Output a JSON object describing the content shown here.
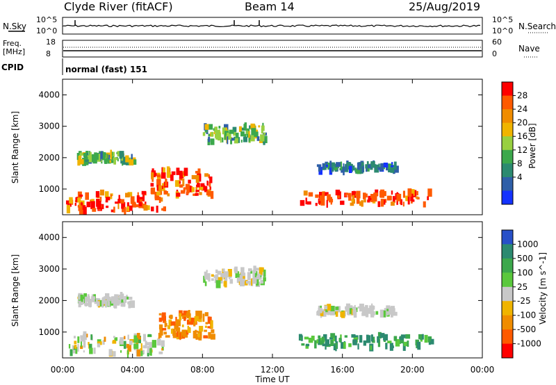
{
  "header": {
    "station": "Clyde River (fitACF)",
    "beam": "Beam 14",
    "date": "25/Aug/2019"
  },
  "status_panels": {
    "nsky_label": "N.Sky",
    "nsky_ticks": [
      "10^5",
      "10^0"
    ],
    "nsearch_label": "N.Search",
    "nsearch_ticks": [
      "10^5",
      "10^0"
    ],
    "freq_label": "Freq.",
    "freq_unit": "[MHz]",
    "freq_ticks": [
      "18",
      "8"
    ],
    "nave_label": "Nave",
    "nave_ticks": [
      "60",
      "0"
    ],
    "cpid_label": "CPID",
    "cpid_value": "normal (fast) 151"
  },
  "chart_data": [
    {
      "type": "heatmap",
      "panel": "power",
      "ylabel": "Slant Range [km]",
      "yticks": [
        "4000",
        "3000",
        "2000",
        "1000"
      ],
      "ylim": [
        180,
        4500
      ],
      "xlim": [
        0,
        24
      ],
      "colorbar": {
        "label": "Power [dB]",
        "ticks": [
          "28",
          "24",
          "20",
          "16",
          "12",
          "8",
          "4"
        ],
        "colors": [
          "#ff0000",
          "#ff5a00",
          "#f08c00",
          "#f0b400",
          "#98d040",
          "#3ca84c",
          "#2c8a70",
          "#2f5fa8",
          "#1432ff"
        ]
      },
      "regions": [
        {
          "t0": 0.2,
          "t1": 5.8,
          "r0": 300,
          "r1": 900,
          "level": "high"
        },
        {
          "t0": 5.0,
          "t1": 8.5,
          "r0": 800,
          "r1": 1600,
          "level": "high"
        },
        {
          "t0": 0.8,
          "t1": 4.0,
          "r0": 1850,
          "r1": 2150,
          "level": "mid"
        },
        {
          "t0": 8.0,
          "t1": 11.5,
          "r0": 2500,
          "r1": 3000,
          "level": "mid"
        },
        {
          "t0": 14.5,
          "t1": 19.0,
          "r0": 1550,
          "r1": 1800,
          "level": "low"
        },
        {
          "t0": 13.5,
          "t1": 21.0,
          "r0": 500,
          "r1": 900,
          "level": "high"
        }
      ]
    },
    {
      "type": "heatmap",
      "panel": "velocity",
      "ylabel": "Slant Range [km]",
      "yticks": [
        "4000",
        "3000",
        "2000",
        "1000"
      ],
      "ylim": [
        180,
        4500
      ],
      "xlim": [
        0,
        24
      ],
      "xlabel": "Time UT",
      "xticks": [
        "00:00",
        "04:00",
        "08:00",
        "12:00",
        "16:00",
        "20:00",
        "00:00"
      ],
      "colorbar": {
        "label": "Velocity [m s^-1]",
        "ticks": [
          "1000",
          "500",
          "100",
          "25",
          "-25",
          "-100",
          "-500",
          "-1000"
        ],
        "colors": [
          "#2850c8",
          "#2c8a70",
          "#3ca84c",
          "#5ac83c",
          "#c8c8c8",
          "#f0b400",
          "#f08c00",
          "#ff5a00",
          "#ff0000"
        ]
      },
      "regions": [
        {
          "t0": 0.2,
          "t1": 5.8,
          "r0": 300,
          "r1": 900,
          "level": "mixed"
        },
        {
          "t0": 5.5,
          "t1": 8.5,
          "r0": 800,
          "r1": 1600,
          "level": "neg"
        },
        {
          "t0": 0.8,
          "t1": 4.0,
          "r0": 1850,
          "r1": 2150,
          "level": "zero"
        },
        {
          "t0": 8.0,
          "t1": 11.5,
          "r0": 2500,
          "r1": 3000,
          "level": "zero"
        },
        {
          "t0": 14.5,
          "t1": 19.0,
          "r0": 1550,
          "r1": 1800,
          "level": "zero"
        },
        {
          "t0": 13.5,
          "t1": 21.0,
          "r0": 500,
          "r1": 900,
          "level": "pos"
        }
      ]
    }
  ]
}
